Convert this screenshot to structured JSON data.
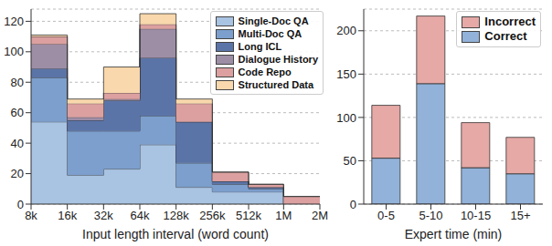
{
  "chart_data": [
    {
      "type": "histogram",
      "xlabel": "Input length interval (word count)",
      "bins": [
        8000,
        16000,
        32000,
        64000,
        128000,
        256000,
        512000,
        1000000,
        2000000
      ],
      "xlim": [
        8000,
        2000000
      ],
      "xticks": [
        {
          "value": 8000,
          "label": "8k"
        },
        {
          "value": 16000,
          "label": "16k"
        },
        {
          "value": 32000,
          "label": "32k"
        },
        {
          "value": 64000,
          "label": "64k"
        },
        {
          "value": 128000,
          "label": "128k"
        },
        {
          "value": 256000,
          "label": "256k"
        },
        {
          "value": 512000,
          "label": "512k"
        },
        {
          "value": 1000000,
          "label": "1M"
        },
        {
          "value": 2000000,
          "label": "2M"
        }
      ],
      "log": "x",
      "ylim": [
        0,
        128
      ],
      "yticks": [
        0,
        20,
        40,
        60,
        80,
        100,
        120
      ],
      "grid": true,
      "stacked": true,
      "legend": "upper right",
      "series": [
        {
          "name": "Single-Doc QA",
          "color": "#a9c3e2",
          "values": [
            54,
            19,
            23,
            39,
            11,
            8,
            8,
            0
          ]
        },
        {
          "name": "Multi-Doc QA",
          "color": "#7c9fcd",
          "values": [
            29,
            29,
            25,
            19,
            16,
            5,
            2,
            0
          ]
        },
        {
          "name": "Long ICL",
          "color": "#5b74a8",
          "values": [
            6,
            7,
            20,
            38,
            27,
            2,
            1,
            0
          ]
        },
        {
          "name": "Dialogue History",
          "color": "#9d8ea6",
          "values": [
            16,
            2,
            1,
            19,
            0,
            0,
            0,
            0
          ]
        },
        {
          "name": "Code Repo",
          "color": "#dca0a0",
          "values": [
            5,
            9,
            4,
            3,
            12,
            6,
            2,
            5
          ]
        },
        {
          "name": "Structured Data",
          "color": "#f8d8ac",
          "values": [
            1,
            3,
            17,
            7,
            3,
            0,
            0,
            0
          ]
        }
      ]
    },
    {
      "type": "bar",
      "xlabel": "Expert time (min)",
      "categories": [
        "0-5",
        "5-10",
        "10-15",
        "15+"
      ],
      "ylim": [
        0,
        225
      ],
      "yticks": [
        0,
        50,
        100,
        150,
        200
      ],
      "grid": true,
      "stacked": true,
      "legend": "upper right",
      "series": [
        {
          "name": "Correct",
          "color": "#92b2d9",
          "values": [
            53,
            139,
            42,
            35
          ]
        },
        {
          "name": "Incorrect",
          "color": "#e6a9a6",
          "values": [
            61,
            78,
            52,
            42
          ]
        }
      ]
    }
  ]
}
